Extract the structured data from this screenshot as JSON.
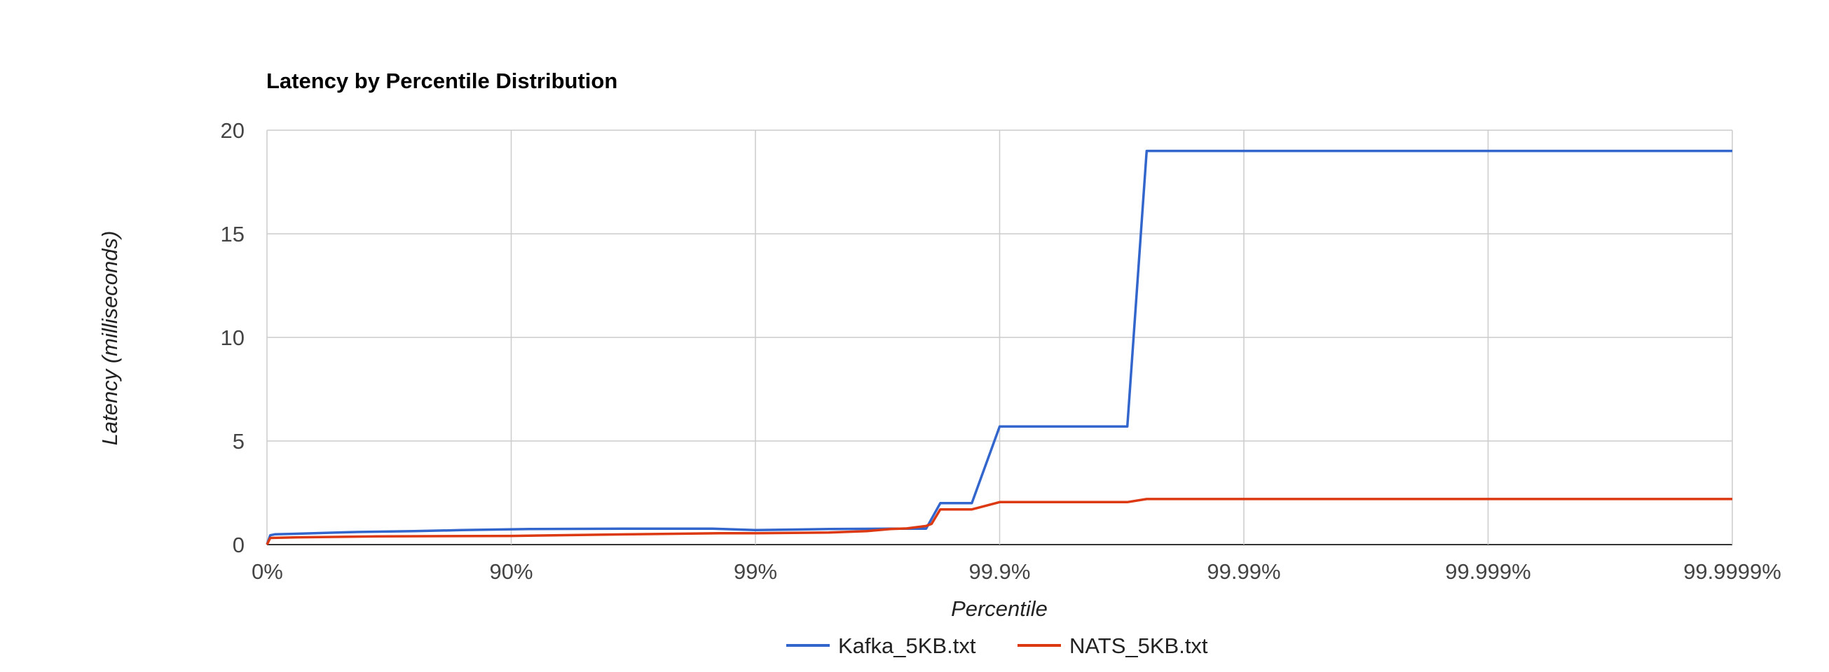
{
  "chart_data": {
    "type": "line",
    "title": "Latency by Percentile Distribution",
    "xlabel": "Percentile",
    "ylabel": "Latency (milliseconds)",
    "x_scale": "log-percentile",
    "x_ticks": [
      "0%",
      "90%",
      "99%",
      "99.9%",
      "99.99%",
      "99.999%",
      "99.9999%"
    ],
    "y_ticks": [
      0,
      5,
      10,
      15,
      20
    ],
    "ylim": [
      0,
      20
    ],
    "grid": true,
    "legend_position": "bottom",
    "series": [
      {
        "name": "Kafka_5KB.txt",
        "color": "#3366cc",
        "points": [
          [
            0,
            0.0
          ],
          [
            3,
            0.45
          ],
          [
            7.5,
            0.5
          ],
          [
            22,
            0.52
          ],
          [
            54,
            0.6
          ],
          [
            75,
            0.65
          ],
          [
            84,
            0.7
          ],
          [
            91.6,
            0.75
          ],
          [
            96.8,
            0.77
          ],
          [
            98.5,
            0.77
          ],
          [
            99.0,
            0.7
          ],
          [
            99.5,
            0.75
          ],
          [
            99.75,
            0.77
          ],
          [
            99.8,
            0.77
          ],
          [
            99.825,
            2.0
          ],
          [
            99.87,
            2.0
          ],
          [
            99.9,
            5.7
          ],
          [
            99.97,
            5.7
          ],
          [
            99.975,
            19.0
          ],
          [
            99.9999,
            19.0
          ]
        ]
      },
      {
        "name": "NATS_5KB.txt",
        "color": "#dc3912",
        "points": [
          [
            0,
            0.0
          ],
          [
            3,
            0.32
          ],
          [
            25,
            0.35
          ],
          [
            65,
            0.4
          ],
          [
            90,
            0.42
          ],
          [
            96.8,
            0.5
          ],
          [
            98.6,
            0.55
          ],
          [
            99.0,
            0.55
          ],
          [
            99.5,
            0.58
          ],
          [
            99.65,
            0.65
          ],
          [
            99.72,
            0.75
          ],
          [
            99.76,
            0.78
          ],
          [
            99.8,
            0.9
          ],
          [
            99.81,
            1.0
          ],
          [
            99.825,
            1.7
          ],
          [
            99.87,
            1.7
          ],
          [
            99.9,
            2.05
          ],
          [
            99.97,
            2.05
          ],
          [
            99.975,
            2.2
          ],
          [
            99.9999,
            2.2
          ]
        ]
      }
    ]
  }
}
